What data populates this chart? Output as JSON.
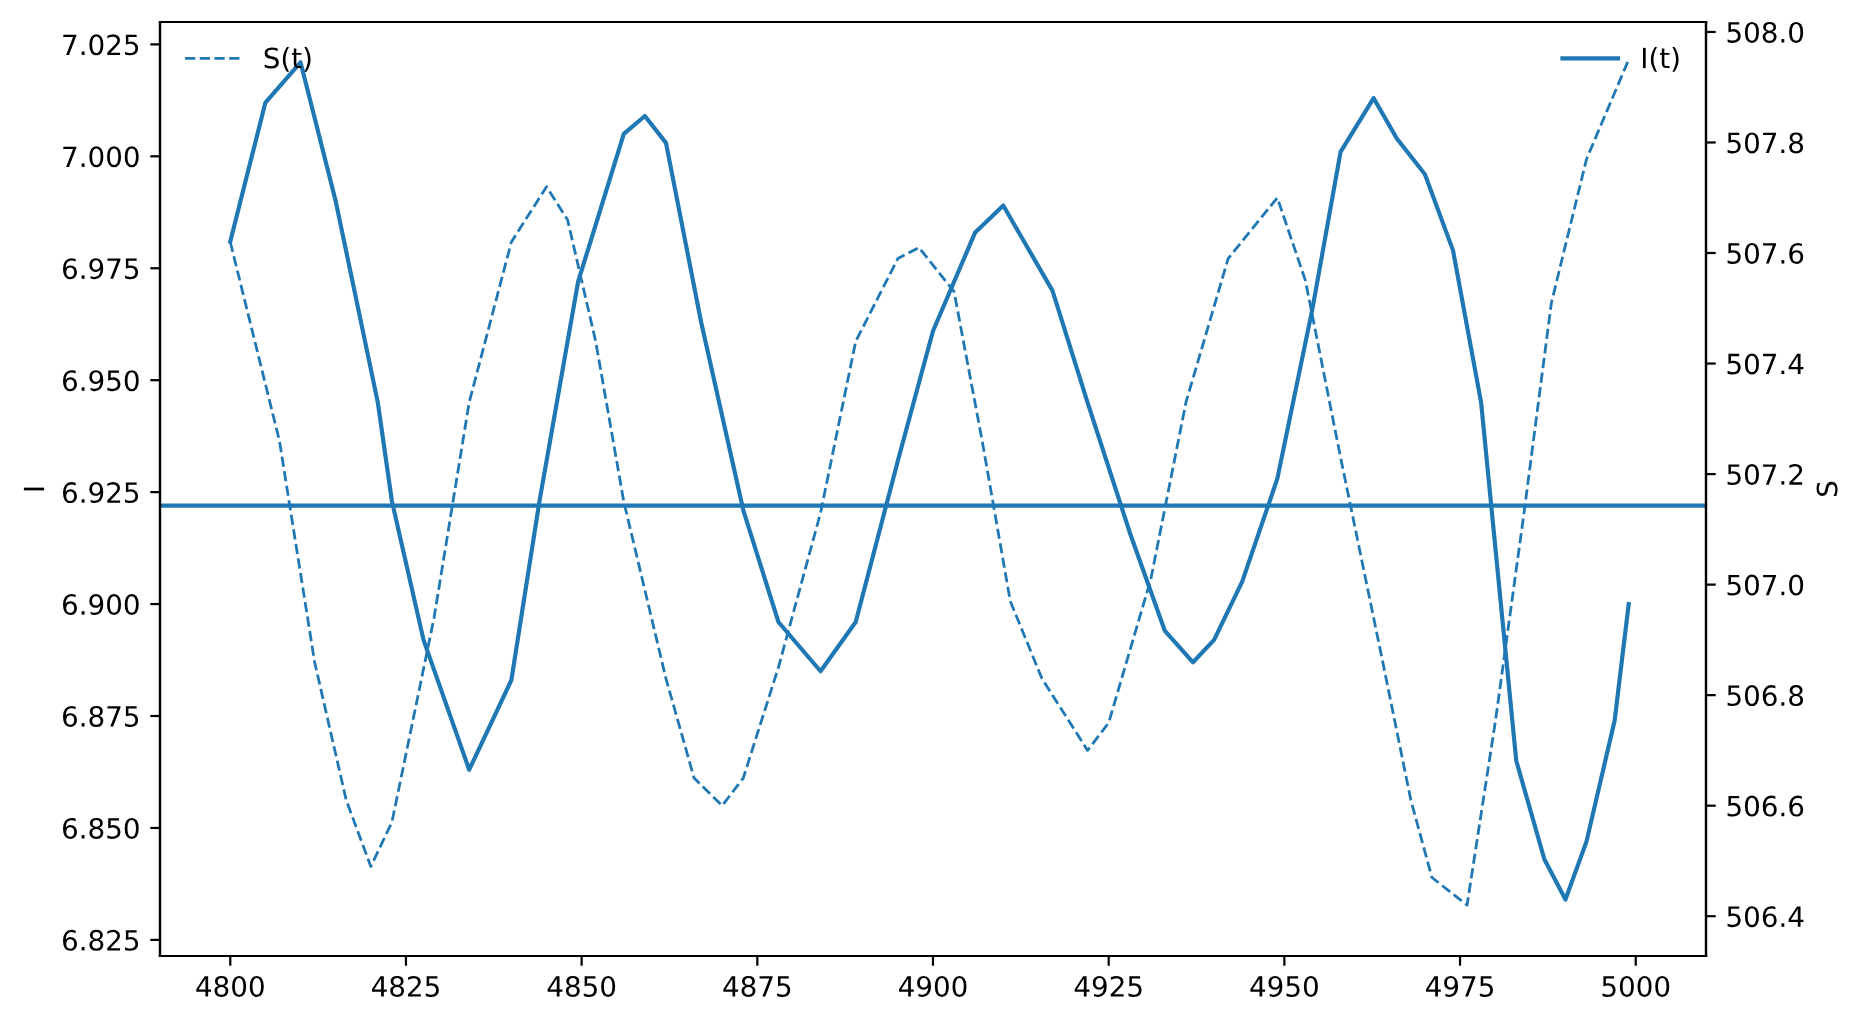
{
  "chart_data": {
    "type": "line",
    "xlabel": null,
    "ylabel": "I",
    "y2label": "S",
    "legend": "top",
    "xlim": [
      4790,
      5010
    ],
    "xticks": [
      4800,
      4825,
      4850,
      4875,
      4900,
      4925,
      4950,
      4975,
      5000
    ],
    "ylim": [
      6.8214,
      7.03
    ],
    "yticks": [
      6.825,
      {
        "value": 6.85,
        "label": "6.850"
      },
      6.875,
      {
        "value": 6.9,
        "label": "6.900"
      },
      6.925,
      {
        "value": 6.95,
        "label": "6.950"
      },
      6.975,
      {
        "value": 7.0,
        "label": "7.000"
      },
      7.025
    ],
    "y2lim": [
      506.328,
      508.018
    ],
    "y2ticks": [
      506.4,
      506.6,
      506.8,
      {
        "value": 507.0,
        "label": "507.0"
      },
      507.2,
      507.4,
      507.6,
      507.8,
      {
        "value": 508.0,
        "label": "508.0"
      }
    ],
    "grid": false,
    "ref_lines": [
      {
        "axis": "y",
        "value": 6.922,
        "label": null,
        "color": "#1f77b4",
        "line_style": "solid"
      }
    ],
    "series": [
      {
        "name": "I(t)",
        "color": "#1f77b4",
        "line_style": "solid",
        "axis": "y",
        "x": [
          4800,
          4805,
          4810,
          4815,
          4821,
          4823,
          4827.5,
          4834,
          4840,
          4844,
          4849.5,
          4856,
          4859,
          4862,
          4867,
          4873,
          4878,
          4884,
          4889,
          4895,
          4900,
          4906,
          4910,
          4917,
          4922,
          4928,
          4933,
          4937,
          4940,
          4944,
          4949,
          4954,
          4958,
          4962.7,
          4966,
          4970,
          4974,
          4978,
          4983,
          4987,
          4990,
          4993,
          4997,
          4999
        ],
        "values": [
          6.981,
          7.012,
          7.021,
          6.99,
          6.945,
          6.923,
          6.892,
          6.863,
          6.883,
          6.923,
          6.972,
          7.005,
          7.009,
          7.003,
          6.963,
          6.921,
          6.896,
          6.885,
          6.896,
          6.932,
          6.961,
          6.983,
          6.989,
          6.97,
          6.945,
          6.916,
          6.894,
          6.887,
          6.892,
          6.905,
          6.928,
          6.966,
          7.001,
          7.013,
          7.004,
          6.996,
          6.979,
          6.945,
          6.865,
          6.843,
          6.834,
          6.847,
          6.874,
          6.9
        ]
      },
      {
        "name": "S(t)",
        "color": "#1f77b4",
        "line_style": "dashed",
        "axis": "y2",
        "x": [
          4800,
          4807,
          4812,
          4816.5,
          4820,
          4823,
          4829,
          4834,
          4840,
          4845,
          4848,
          4852,
          4856,
          4862,
          4866,
          4870,
          4873,
          4878,
          4884,
          4889,
          4895,
          4898,
          4903,
          4907,
          4911,
          4915.5,
          4922,
          4925,
          4931,
          4936,
          4942,
          4949,
          4953,
          4958,
          4964,
          4968,
          4971,
          4976,
          4980,
          4984,
          4988,
          4993,
          4999
        ],
        "values": [
          507.62,
          507.26,
          506.86,
          506.61,
          506.49,
          506.57,
          506.94,
          507.33,
          507.62,
          507.72,
          507.66,
          507.44,
          507.15,
          506.83,
          506.65,
          506.6,
          506.65,
          506.85,
          507.13,
          507.44,
          507.59,
          507.61,
          507.53,
          507.26,
          506.97,
          506.83,
          506.7,
          506.75,
          507.01,
          507.33,
          507.59,
          507.7,
          507.55,
          507.23,
          506.86,
          506.61,
          506.47,
          506.42,
          506.75,
          507.12,
          507.51,
          507.77,
          507.95
        ]
      }
    ]
  }
}
